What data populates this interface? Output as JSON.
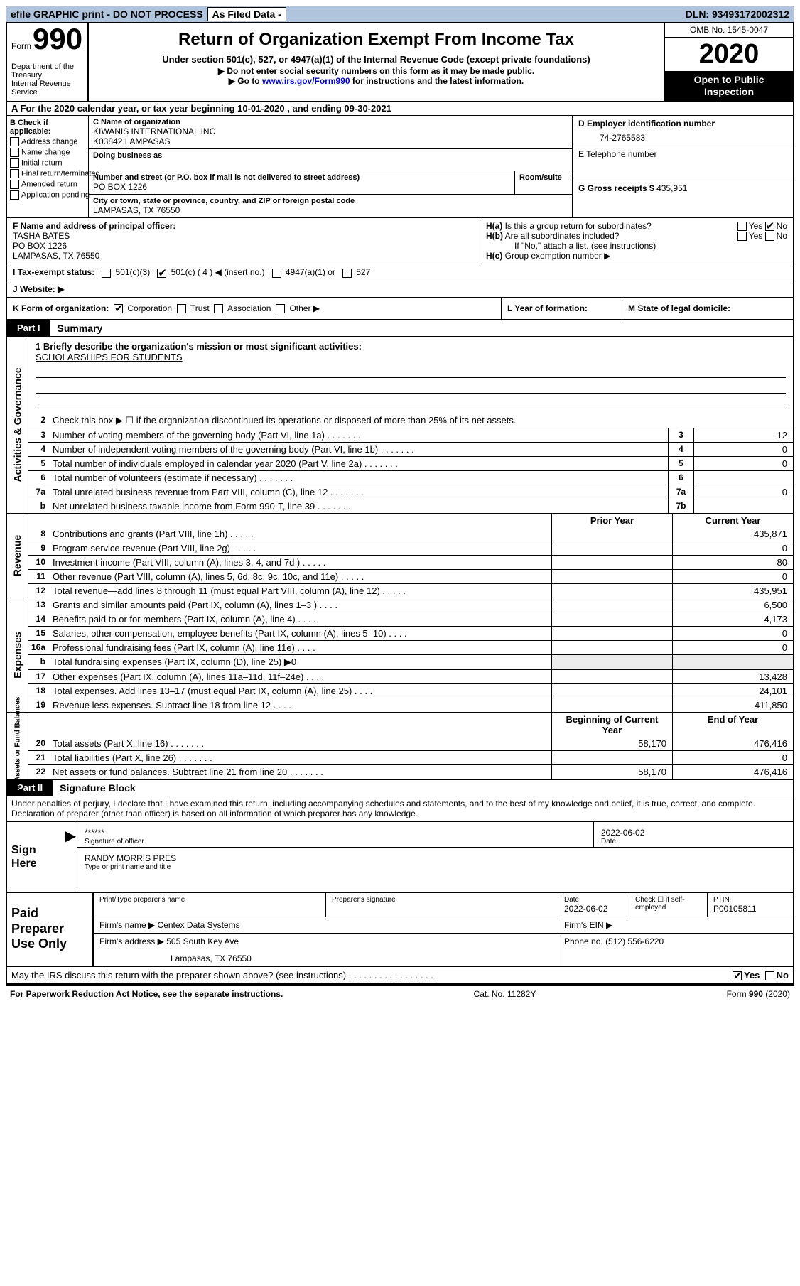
{
  "topbar": {
    "efile": "efile GRAPHIC print - DO NOT PROCESS",
    "asfiled": "As Filed Data -",
    "dln_label": "DLN:",
    "dln": "93493172002312"
  },
  "header": {
    "form_word": "Form",
    "form_num": "990",
    "dept1": "Department of the Treasury",
    "dept2": "Internal Revenue Service",
    "title": "Return of Organization Exempt From Income Tax",
    "subtitle": "Under section 501(c), 527, or 4947(a)(1) of the Internal Revenue Code (except private foundations)",
    "note1": "▶ Do not enter social security numbers on this form as it may be made public.",
    "note2_pre": "▶ Go to ",
    "note2_link": "www.irs.gov/Form990",
    "note2_post": " for instructions and the latest information.",
    "omb": "OMB No. 1545-0047",
    "year": "2020",
    "open1": "Open to Public",
    "open2": "Inspection"
  },
  "rowA": {
    "prefix": "A  For the 2020 calendar year, or tax year beginning ",
    "begin": "10-01-2020",
    "mid": "  , and ending ",
    "end": "09-30-2021"
  },
  "colB": {
    "hdr": "B Check if applicable:",
    "items": [
      "Address change",
      "Name change",
      "Initial return",
      "Final return/terminated",
      "Amended return",
      "Application pending"
    ]
  },
  "colC": {
    "name_lbl": "C Name of organization",
    "name1": "KIWANIS INTERNATIONAL INC",
    "name2": "K03842 LAMPASAS",
    "dba_lbl": "Doing business as",
    "addr_lbl": "Number and street (or P.O. box if mail is not delivered to street address)",
    "room_lbl": "Room/suite",
    "addr": "PO BOX 1226",
    "city_lbl": "City or town, state or province, country, and ZIP or foreign postal code",
    "city": "LAMPASAS, TX  76550"
  },
  "colD": {
    "ein_lbl": "D Employer identification number",
    "ein": "74-2765583",
    "tel_lbl": "E Telephone number",
    "gross_lbl": "G Gross receipts $",
    "gross": "435,951"
  },
  "F": {
    "lbl": "F  Name and address of principal officer:",
    "name": "TASHA BATES",
    "addr": "PO BOX 1226",
    "city": "LAMPASAS, TX  76550"
  },
  "H": {
    "ha": "H(a)  Is this a group return for subordinates?",
    "hb": "H(b)  Are all subordinates included?",
    "hb_note": "If \"No,\" attach a list. (see instructions)",
    "hc": "H(c)  Group exemption number ▶",
    "yes": "Yes",
    "no": "No"
  },
  "I": {
    "lbl": "I  Tax-exempt status:",
    "c3": "501(c)(3)",
    "c": "501(c) ( 4 ) ◀ (insert no.)",
    "a1": "4947(a)(1) or",
    "s527": "527"
  },
  "J": {
    "lbl": "J  Website: ▶"
  },
  "K": {
    "lbl": "K Form of organization:",
    "corp": "Corporation",
    "trust": "Trust",
    "assoc": "Association",
    "other": "Other ▶"
  },
  "L": {
    "lbl": "L Year of formation:"
  },
  "M": {
    "lbl": "M State of legal domicile:"
  },
  "part1": {
    "blk": "Part I",
    "ttl": "Summary"
  },
  "mission": {
    "q": "1 Briefly describe the organization's mission or most significant activities:",
    "a": "SCHOLARSHIPS FOR STUDENTS"
  },
  "lines_gov": [
    {
      "n": "2",
      "t": "Check this box ▶ ☐ if the organization discontinued its operations or disposed of more than 25% of its net assets."
    },
    {
      "n": "3",
      "t": "Number of voting members of the governing body (Part VI, line 1a)",
      "c": "3",
      "v": "12"
    },
    {
      "n": "4",
      "t": "Number of independent voting members of the governing body (Part VI, line 1b)",
      "c": "4",
      "v": "0"
    },
    {
      "n": "5",
      "t": "Total number of individuals employed in calendar year 2020 (Part V, line 2a)",
      "c": "5",
      "v": "0"
    },
    {
      "n": "6",
      "t": "Total number of volunteers (estimate if necessary)",
      "c": "6",
      "v": ""
    },
    {
      "n": "7a",
      "t": "Total unrelated business revenue from Part VIII, column (C), line 12",
      "c": "7a",
      "v": "0"
    },
    {
      "n": "b",
      "t": "Net unrelated business taxable income from Form 990-T, line 39",
      "c": "7b",
      "v": ""
    }
  ],
  "yr_hdr": {
    "prior": "Prior Year",
    "curr": "Current Year"
  },
  "lines_rev": [
    {
      "n": "8",
      "t": "Contributions and grants (Part VIII, line 1h)",
      "p": "",
      "c": "435,871"
    },
    {
      "n": "9",
      "t": "Program service revenue (Part VIII, line 2g)",
      "p": "",
      "c": "0"
    },
    {
      "n": "10",
      "t": "Investment income (Part VIII, column (A), lines 3, 4, and 7d )",
      "p": "",
      "c": "80"
    },
    {
      "n": "11",
      "t": "Other revenue (Part VIII, column (A), lines 5, 6d, 8c, 9c, 10c, and 11e)",
      "p": "",
      "c": "0"
    },
    {
      "n": "12",
      "t": "Total revenue—add lines 8 through 11 (must equal Part VIII, column (A), line 12)",
      "p": "",
      "c": "435,951"
    }
  ],
  "lines_exp": [
    {
      "n": "13",
      "t": "Grants and similar amounts paid (Part IX, column (A), lines 1–3 )",
      "p": "",
      "c": "6,500"
    },
    {
      "n": "14",
      "t": "Benefits paid to or for members (Part IX, column (A), line 4)",
      "p": "",
      "c": "4,173"
    },
    {
      "n": "15",
      "t": "Salaries, other compensation, employee benefits (Part IX, column (A), lines 5–10)",
      "p": "",
      "c": "0"
    },
    {
      "n": "16a",
      "t": "Professional fundraising fees (Part IX, column (A), line 11e)",
      "p": "",
      "c": "0"
    },
    {
      "n": "b",
      "t": "Total fundraising expenses (Part IX, column (D), line 25) ▶0",
      "gray": true
    },
    {
      "n": "17",
      "t": "Other expenses (Part IX, column (A), lines 11a–11d, 11f–24e)",
      "p": "",
      "c": "13,428"
    },
    {
      "n": "18",
      "t": "Total expenses. Add lines 13–17 (must equal Part IX, column (A), line 25)",
      "p": "",
      "c": "24,101"
    },
    {
      "n": "19",
      "t": "Revenue less expenses. Subtract line 18 from line 12",
      "p": "",
      "c": "411,850"
    }
  ],
  "yr_hdr2": {
    "prior": "Beginning of Current Year",
    "curr": "End of Year"
  },
  "lines_net": [
    {
      "n": "20",
      "t": "Total assets (Part X, line 16)",
      "p": "58,170",
      "c": "476,416"
    },
    {
      "n": "21",
      "t": "Total liabilities (Part X, line 26)",
      "p": "",
      "c": "0"
    },
    {
      "n": "22",
      "t": "Net assets or fund balances. Subtract line 21 from line 20",
      "p": "58,170",
      "c": "476,416"
    }
  ],
  "side": {
    "gov": "Activities & Governance",
    "rev": "Revenue",
    "exp": "Expenses",
    "net": "Net Assets or Fund Balances"
  },
  "part2": {
    "blk": "Part II",
    "ttl": "Signature Block"
  },
  "perjury": "Under penalties of perjury, I declare that I have examined this return, including accompanying schedules and statements, and to the best of my knowledge and belief, it is true, correct, and complete. Declaration of preparer (other than officer) is based on all information of which preparer has any knowledge.",
  "sign": {
    "here": "Sign Here",
    "stars": "******",
    "sig_lbl": "Signature of officer",
    "date": "2022-06-02",
    "date_lbl": "Date",
    "name": "RANDY MORRIS  PRES",
    "name_lbl": "Type or print name and title"
  },
  "prep": {
    "left": "Paid Preparer Use Only",
    "h1": "Print/Type preparer's name",
    "h2": "Preparer's signature",
    "h3": "Date",
    "h3v": "2022-06-02",
    "h4": "Check ☐ if self-employed",
    "h5": "PTIN",
    "h5v": "P00105811",
    "firm_lbl": "Firm's name    ▶",
    "firm": "Centex Data Systems",
    "ein_lbl": "Firm's EIN ▶",
    "addr_lbl": "Firm's address ▶",
    "addr1": "505 South Key Ave",
    "addr2": "Lampasas, TX  76550",
    "phone_lbl": "Phone no.",
    "phone": "(512) 556-6220"
  },
  "discuss": "May the IRS discuss this return with the preparer shown above? (see instructions)",
  "foot": {
    "left": "For Paperwork Reduction Act Notice, see the separate instructions.",
    "mid": "Cat. No. 11282Y",
    "right": "Form 990 (2020)"
  }
}
